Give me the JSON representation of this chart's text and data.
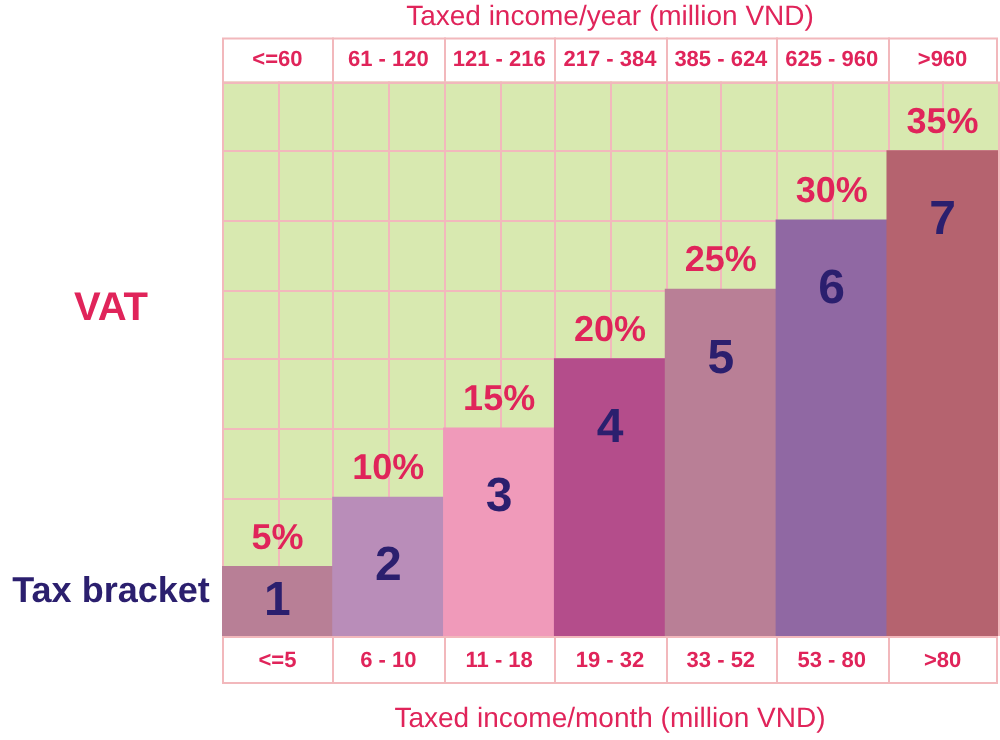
{
  "chart_data": {
    "type": "bar",
    "x2label": "Taxed income/year (million VND)",
    "xlabel": "Taxed income/month (million VND)",
    "ylabel": "VAT",
    "categories": [
      "<=5",
      "6 - 10",
      "11 - 18",
      "19 - 32",
      "33 - 52",
      "53 - 80",
      ">80"
    ],
    "values": [
      5,
      10,
      15,
      20,
      25,
      30,
      35
    ],
    "value_labels": [
      "5%",
      "10%",
      "15%",
      "20%",
      "25%",
      "30%",
      "35%"
    ],
    "colors": [
      "#b87f96",
      "#b98db9",
      "#f09aba",
      "#b44d8b",
      "#b97f96",
      "#9068a3",
      "#b5636f"
    ],
    "ylim": [
      0,
      40
    ],
    "tick_labels": "x",
    "grid": true,
    "legend": false,
    "annotations": [
      "Tax bracket",
      "<=60",
      "61 - 120",
      "121 - 216",
      "217 - 384",
      "385 - 624",
      "625 - 960",
      ">960",
      "1",
      "2",
      "3",
      "4",
      "5",
      "6",
      "7"
    ]
  }
}
